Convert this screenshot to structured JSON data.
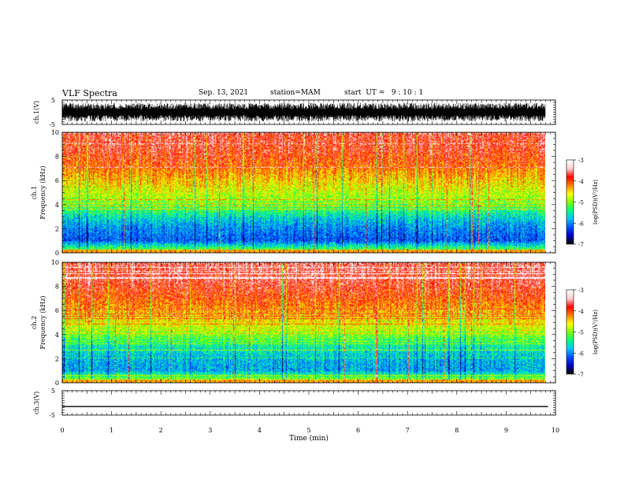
{
  "header": {
    "title": "VLF Spectra",
    "date": "Sep. 13, 2021",
    "station": "station=MAM",
    "start_ut": "start  UT =   9 : 10 : 1"
  },
  "chart_data": [
    {
      "type": "line",
      "panel": "ch1-waveform",
      "ylabel": "ch.1(V)",
      "ylim": [
        -5,
        5
      ],
      "yticks": [
        "5",
        "-5"
      ],
      "xlim": [
        0,
        10
      ],
      "note": "dense noisy waveform oscillating roughly between -3 and 3 V"
    },
    {
      "type": "heatmap",
      "panel": "ch1-spectrogram",
      "ylabel_line1": "ch.1",
      "ylabel_line2": "Frequency (kHz)",
      "ylim": [
        0,
        10
      ],
      "yticks": [
        "0",
        "2",
        "4",
        "6",
        "8",
        "10"
      ],
      "xlim": [
        0,
        10
      ],
      "colorbar": {
        "label": "log(PSD)(V²/Hz)",
        "range": [
          -7,
          -3
        ],
        "ticks": [
          "-3",
          "-4",
          "-5",
          "-6",
          "-7"
        ]
      },
      "profile": [
        {
          "f": 0.3,
          "v": -5.2
        },
        {
          "f": 1.0,
          "v": -6.2
        },
        {
          "f": 2.0,
          "v": -6.0
        },
        {
          "f": 2.8,
          "v": -5.7
        },
        {
          "f": 3.5,
          "v": -5.3
        },
        {
          "f": 4.5,
          "v": -4.9
        },
        {
          "f": 5.5,
          "v": -4.6
        },
        {
          "f": 6.5,
          "v": -4.3
        },
        {
          "f": 7.5,
          "v": -4.0
        },
        {
          "f": 8.5,
          "v": -3.8
        },
        {
          "f": 10,
          "v": -3.7
        }
      ]
    },
    {
      "type": "heatmap",
      "panel": "ch2-spectrogram",
      "ylabel_line1": "ch.2",
      "ylabel_line2": "Frequency (kHz)",
      "ylim": [
        0,
        10
      ],
      "yticks": [
        "0",
        "2",
        "4",
        "6",
        "8",
        "10"
      ],
      "xlim": [
        0,
        10
      ],
      "colorbar": {
        "label": "log(PSD)(V²/Hz)",
        "range": [
          -7,
          -3
        ],
        "ticks": [
          "-3",
          "-4",
          "-5",
          "-6",
          "-7"
        ]
      },
      "profile": [
        {
          "f": 0.3,
          "v": -5.0
        },
        {
          "f": 1.0,
          "v": -5.9
        },
        {
          "f": 2.0,
          "v": -5.8
        },
        {
          "f": 3.0,
          "v": -5.5
        },
        {
          "f": 4.0,
          "v": -5.0
        },
        {
          "f": 5.0,
          "v": -4.6
        },
        {
          "f": 6.0,
          "v": -4.3
        },
        {
          "f": 7.0,
          "v": -4.0
        },
        {
          "f": 8.5,
          "v": -3.7
        },
        {
          "f": 10,
          "v": -3.6
        }
      ]
    },
    {
      "type": "line",
      "panel": "ch3-waveform",
      "ylabel": "ch.3(V)",
      "ylim": [
        -5,
        5
      ],
      "yticks": [
        "5",
        "-5"
      ],
      "xlim": [
        0,
        10
      ],
      "xlabel": "Time (min)",
      "xticks": [
        "0",
        "1",
        "2",
        "3",
        "4",
        "5",
        "6",
        "7",
        "8",
        "9",
        "10"
      ],
      "x": [
        0,
        9.85
      ],
      "y": [
        -1.5,
        -1.5
      ]
    }
  ],
  "colors": {
    "colormap": [
      "#000000",
      "#0000c8",
      "#0050ff",
      "#00c8ff",
      "#00ff80",
      "#80ff00",
      "#ffff00",
      "#ff8000",
      "#ff0000",
      "#ffd0d0",
      "#ffffff"
    ]
  }
}
